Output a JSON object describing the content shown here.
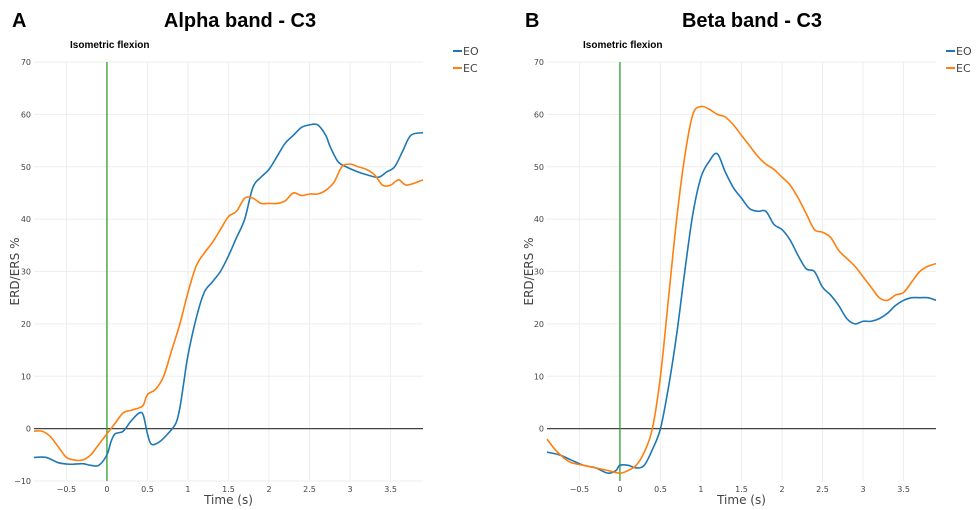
{
  "chart_data": [
    {
      "type": "line",
      "panel_label": "A",
      "title": "Alpha band - C3",
      "annotation": "Isometric flexion",
      "xlabel": "Time (s)",
      "ylabel": "ERD/ERS %",
      "xlim": [
        -0.9,
        3.9
      ],
      "ylim": [
        -10,
        70
      ],
      "xticks": [
        -0.5,
        0,
        0.5,
        1,
        1.5,
        2,
        2.5,
        3,
        3.5
      ],
      "xtick_labels": [
        "−0.5",
        "0",
        "0.5",
        "1",
        "1.5",
        "2",
        "2.5",
        "3",
        "3.5"
      ],
      "yticks": [
        -10,
        0,
        10,
        20,
        30,
        40,
        50,
        60,
        70
      ],
      "ytick_labels": [
        "−10",
        "0",
        "10",
        "20",
        "30",
        "40",
        "50",
        "60",
        "70"
      ],
      "vline_x": 0,
      "hline_y": 0,
      "grid": true,
      "legend_position": "top-right",
      "series": [
        {
          "name": "EO",
          "color": "#1f77b4",
          "points": [
            [
              -0.9,
              -5.5
            ],
            [
              -0.75,
              -5.5
            ],
            [
              -0.6,
              -6.5
            ],
            [
              -0.45,
              -6.8
            ],
            [
              -0.3,
              -6.7
            ],
            [
              -0.2,
              -7
            ],
            [
              -0.1,
              -7
            ],
            [
              0,
              -5
            ],
            [
              0.05,
              -2.5
            ],
            [
              0.1,
              -1
            ],
            [
              0.2,
              -0.5
            ],
            [
              0.3,
              1.5
            ],
            [
              0.4,
              3
            ],
            [
              0.45,
              2.5
            ],
            [
              0.5,
              -1
            ],
            [
              0.55,
              -3
            ],
            [
              0.65,
              -2.5
            ],
            [
              0.75,
              -1
            ],
            [
              0.85,
              1
            ],
            [
              0.9,
              4
            ],
            [
              0.95,
              9
            ],
            [
              1.0,
              14
            ],
            [
              1.1,
              21
            ],
            [
              1.2,
              26
            ],
            [
              1.3,
              28
            ],
            [
              1.4,
              30
            ],
            [
              1.5,
              33
            ],
            [
              1.6,
              36.5
            ],
            [
              1.7,
              40
            ],
            [
              1.8,
              46
            ],
            [
              1.9,
              48
            ],
            [
              2.0,
              49.5
            ],
            [
              2.1,
              52
            ],
            [
              2.2,
              54.5
            ],
            [
              2.3,
              56
            ],
            [
              2.4,
              57.5
            ],
            [
              2.5,
              58
            ],
            [
              2.6,
              58
            ],
            [
              2.7,
              56
            ],
            [
              2.75,
              54
            ],
            [
              2.85,
              51
            ],
            [
              2.95,
              50
            ],
            [
              3.1,
              49
            ],
            [
              3.2,
              48.5
            ],
            [
              3.35,
              48
            ],
            [
              3.45,
              49
            ],
            [
              3.55,
              50
            ],
            [
              3.65,
              53
            ],
            [
              3.75,
              56
            ],
            [
              3.9,
              56.5
            ]
          ]
        },
        {
          "name": "EC",
          "color": "#ff7f0e",
          "points": [
            [
              -0.9,
              -0.5
            ],
            [
              -0.8,
              -0.5
            ],
            [
              -0.7,
              -1.5
            ],
            [
              -0.6,
              -3.5
            ],
            [
              -0.5,
              -5.5
            ],
            [
              -0.4,
              -6
            ],
            [
              -0.3,
              -6
            ],
            [
              -0.2,
              -5
            ],
            [
              -0.1,
              -3
            ],
            [
              0,
              -1
            ],
            [
              0.1,
              1
            ],
            [
              0.2,
              3
            ],
            [
              0.3,
              3.5
            ],
            [
              0.4,
              4
            ],
            [
              0.45,
              4.5
            ],
            [
              0.5,
              6.5
            ],
            [
              0.6,
              7.5
            ],
            [
              0.7,
              10
            ],
            [
              0.8,
              15
            ],
            [
              0.9,
              20
            ],
            [
              1.0,
              26
            ],
            [
              1.1,
              31
            ],
            [
              1.2,
              33.5
            ],
            [
              1.3,
              35.5
            ],
            [
              1.4,
              38
            ],
            [
              1.5,
              40.5
            ],
            [
              1.6,
              41.5
            ],
            [
              1.7,
              44
            ],
            [
              1.8,
              44
            ],
            [
              1.9,
              43
            ],
            [
              2.0,
              43
            ],
            [
              2.1,
              43
            ],
            [
              2.2,
              43.5
            ],
            [
              2.3,
              45
            ],
            [
              2.4,
              44.5
            ],
            [
              2.5,
              44.8
            ],
            [
              2.6,
              44.8
            ],
            [
              2.7,
              45.5
            ],
            [
              2.8,
              47
            ],
            [
              2.9,
              50
            ],
            [
              3.0,
              50.5
            ],
            [
              3.1,
              50
            ],
            [
              3.2,
              49.5
            ],
            [
              3.3,
              48.5
            ],
            [
              3.4,
              46.5
            ],
            [
              3.5,
              46.5
            ],
            [
              3.6,
              47.5
            ],
            [
              3.7,
              46.5
            ],
            [
              3.9,
              47.5
            ]
          ]
        }
      ]
    },
    {
      "type": "line",
      "panel_label": "B",
      "title": "Beta band - C3",
      "annotation": "Isometric flexion",
      "xlabel": "Time (s)",
      "ylabel": "ERD/ERS %",
      "xlim": [
        -0.9,
        3.9
      ],
      "ylim": [
        -10,
        70
      ],
      "xticks": [
        -0.5,
        0,
        0.5,
        1,
        1.5,
        2,
        2.5,
        3,
        3.5
      ],
      "xtick_labels": [
        "−0.5",
        "0",
        "0.5",
        "1",
        "1.5",
        "2",
        "2.5",
        "3",
        "3.5"
      ],
      "yticks": [
        0,
        10,
        20,
        30,
        40,
        50,
        60,
        70
      ],
      "ytick_labels": [
        "0",
        "10",
        "20",
        "30",
        "40",
        "50",
        "60",
        "70"
      ],
      "vline_x": 0,
      "hline_y": 0,
      "grid": true,
      "legend_position": "top-right",
      "series": [
        {
          "name": "EO",
          "color": "#1f77b4",
          "points": [
            [
              -0.9,
              -4.5
            ],
            [
              -0.75,
              -5
            ],
            [
              -0.6,
              -6
            ],
            [
              -0.45,
              -7
            ],
            [
              -0.3,
              -7.5
            ],
            [
              -0.15,
              -8.5
            ],
            [
              -0.05,
              -8
            ],
            [
              0,
              -7
            ],
            [
              0.1,
              -7
            ],
            [
              0.2,
              -7.5
            ],
            [
              0.3,
              -7
            ],
            [
              0.4,
              -4
            ],
            [
              0.5,
              0
            ],
            [
              0.6,
              8
            ],
            [
              0.7,
              18
            ],
            [
              0.8,
              30
            ],
            [
              0.9,
              41
            ],
            [
              1.0,
              48
            ],
            [
              1.1,
              51
            ],
            [
              1.2,
              52.5
            ],
            [
              1.3,
              49
            ],
            [
              1.4,
              46
            ],
            [
              1.5,
              44
            ],
            [
              1.6,
              42
            ],
            [
              1.7,
              41.5
            ],
            [
              1.8,
              41.5
            ],
            [
              1.9,
              39
            ],
            [
              2.0,
              38
            ],
            [
              2.1,
              36
            ],
            [
              2.2,
              33
            ],
            [
              2.3,
              30.5
            ],
            [
              2.4,
              30
            ],
            [
              2.5,
              27
            ],
            [
              2.6,
              25.5
            ],
            [
              2.7,
              23.5
            ],
            [
              2.8,
              21
            ],
            [
              2.9,
              20
            ],
            [
              3.0,
              20.5
            ],
            [
              3.1,
              20.5
            ],
            [
              3.2,
              21
            ],
            [
              3.3,
              22
            ],
            [
              3.4,
              23.5
            ],
            [
              3.5,
              24.5
            ],
            [
              3.6,
              25
            ],
            [
              3.7,
              25
            ],
            [
              3.8,
              25
            ],
            [
              3.9,
              24.5
            ]
          ]
        },
        {
          "name": "EC",
          "color": "#ff7f0e",
          "points": [
            [
              -0.9,
              -2
            ],
            [
              -0.8,
              -4
            ],
            [
              -0.7,
              -5.5
            ],
            [
              -0.6,
              -6.5
            ],
            [
              -0.45,
              -7
            ],
            [
              -0.3,
              -7.5
            ],
            [
              -0.15,
              -8
            ],
            [
              0,
              -8.5
            ],
            [
              0.1,
              -8
            ],
            [
              0.2,
              -7
            ],
            [
              0.3,
              -4.5
            ],
            [
              0.4,
              0
            ],
            [
              0.5,
              10
            ],
            [
              0.6,
              25
            ],
            [
              0.7,
              40
            ],
            [
              0.8,
              52
            ],
            [
              0.9,
              60
            ],
            [
              1.0,
              61.5
            ],
            [
              1.1,
              61
            ],
            [
              1.2,
              60
            ],
            [
              1.3,
              59.5
            ],
            [
              1.4,
              58
            ],
            [
              1.5,
              56
            ],
            [
              1.6,
              54
            ],
            [
              1.7,
              52
            ],
            [
              1.8,
              50.5
            ],
            [
              1.9,
              49.5
            ],
            [
              2.0,
              48
            ],
            [
              2.1,
              46.5
            ],
            [
              2.2,
              44
            ],
            [
              2.3,
              41
            ],
            [
              2.4,
              38
            ],
            [
              2.5,
              37.5
            ],
            [
              2.6,
              36.5
            ],
            [
              2.7,
              34
            ],
            [
              2.8,
              32.5
            ],
            [
              2.9,
              31
            ],
            [
              3.0,
              29
            ],
            [
              3.1,
              27
            ],
            [
              3.2,
              25
            ],
            [
              3.3,
              24.5
            ],
            [
              3.4,
              25.5
            ],
            [
              3.5,
              26
            ],
            [
              3.6,
              28
            ],
            [
              3.7,
              30
            ],
            [
              3.8,
              31
            ],
            [
              3.9,
              31.5
            ]
          ]
        }
      ]
    }
  ]
}
